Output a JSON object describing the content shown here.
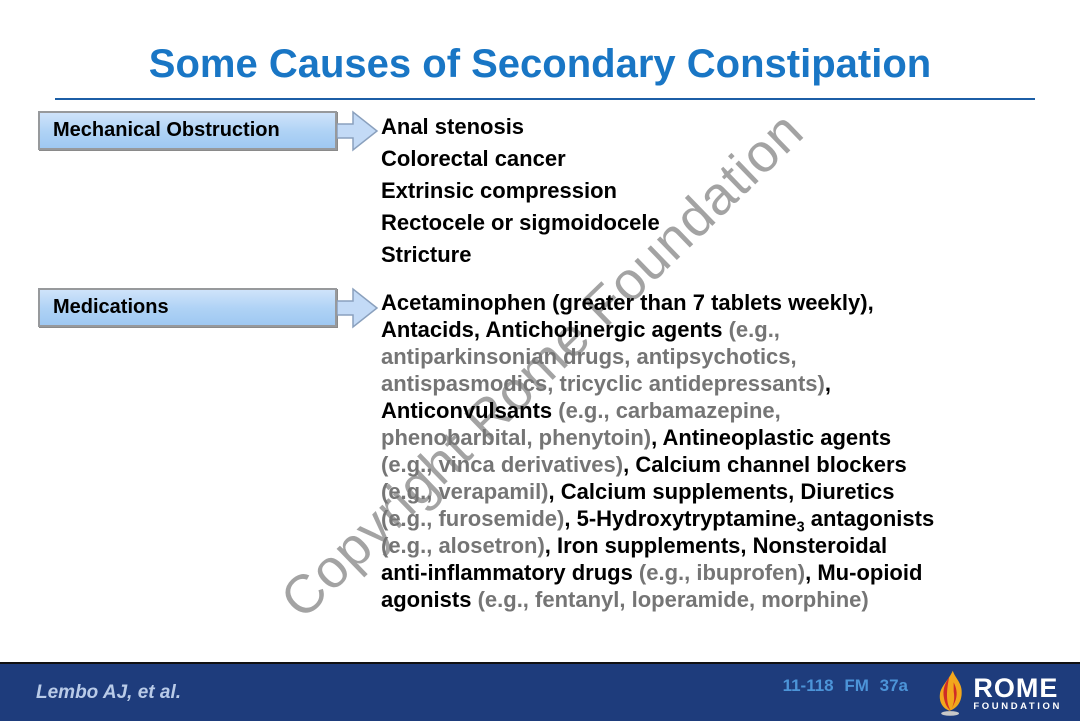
{
  "slide": {
    "title": "Some Causes of Secondary Constipation",
    "watermark": "Copyright Rome Foundation"
  },
  "mechanical": {
    "label": "Mechanical Obstruction",
    "items": [
      "Anal stenosis",
      "Colorectal cancer",
      "Extrinsic compression",
      "Rectocele or sigmoidocele",
      "Stricture"
    ]
  },
  "medications": {
    "label": "Medications",
    "lines": [
      [
        {
          "t": "Acetaminophen (greater than 7 tablets weekly),",
          "c": "black"
        }
      ],
      [
        {
          "t": "Antacids, Anticholinergic agents ",
          "c": "black"
        },
        {
          "t": "(e.g.,",
          "c": "gray"
        }
      ],
      [
        {
          "t": "antiparkinsonian drugs, antipsychotics,",
          "c": "gray"
        }
      ],
      [
        {
          "t": "antispasmodics, tricyclic antidepressants)",
          "c": "gray"
        },
        {
          "t": ",",
          "c": "black"
        }
      ],
      [
        {
          "t": "Anticonvulsants ",
          "c": "black"
        },
        {
          "t": "(e.g., carbamazepine,",
          "c": "gray"
        }
      ],
      [
        {
          "t": "phenobarbital, phenytoin)",
          "c": "gray"
        },
        {
          "t": ", Antineoplastic agents",
          "c": "black"
        }
      ],
      [
        {
          "t": "(e.g., vinca derivatives)",
          "c": "gray"
        },
        {
          "t": ", Calcium channel blockers",
          "c": "black"
        }
      ],
      [
        {
          "t": "(e.g., verapamil)",
          "c": "gray"
        },
        {
          "t": ", Calcium supplements, Diuretics",
          "c": "black"
        }
      ],
      [
        {
          "t": "(e.g., furosemide)",
          "c": "gray"
        },
        {
          "t": ", 5-Hydroxytryptamine",
          "c": "black"
        },
        {
          "t": "3",
          "c": "black",
          "sub": true
        },
        {
          "t": " antagonists",
          "c": "black"
        }
      ],
      [
        {
          "t": "(e.g., alosetron)",
          "c": "gray"
        },
        {
          "t": ", Iron supplements, Nonsteroidal",
          "c": "black"
        }
      ],
      [
        {
          "t": "anti-inflammatory drugs ",
          "c": "black"
        },
        {
          "t": "(e.g., ibuprofen)",
          "c": "gray"
        },
        {
          "t": ", Mu-opioid",
          "c": "black"
        }
      ],
      [
        {
          "t": "agonists ",
          "c": "black"
        },
        {
          "t": "(e.g., fentanyl, loperamide, morphine)",
          "c": "gray"
        }
      ]
    ]
  },
  "footer": {
    "citation": "Lembo AJ, et al.",
    "slide_code": "11-118 FM 37a",
    "logo_name": "ROME",
    "logo_subname": "FOUNDATION"
  },
  "colors": {
    "title_blue": "#1976c5",
    "rule_blue": "#1c5ea6",
    "box_fill": "#aed2f5",
    "box_border": "#97999c",
    "gray_text": "#757575",
    "watermark_gray": "#8f8f8f",
    "footer_navy": "#1e3c7c",
    "citation_blue": "#b9cbe8",
    "code_blue": "#4c94d8",
    "flame_gold": "#f2a71d",
    "flame_red": "#cf2c27"
  }
}
